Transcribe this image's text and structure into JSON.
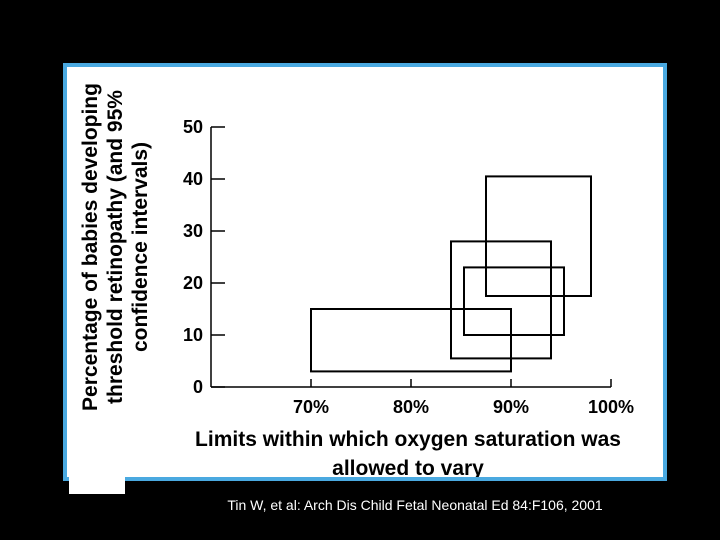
{
  "citation": "Tin W, et al: Arch Dis Child Fetal Neonatal Ed 84:F106, 2001",
  "colors": {
    "frame": "#4aa9e0",
    "background": "#000000",
    "panel": "#ffffff",
    "ink": "#000000"
  },
  "chart_data": {
    "type": "box-range",
    "title": "",
    "xlabel_lines": [
      "Limits within which oxygen saturation was",
      "allowed to vary"
    ],
    "ylabel_lines": [
      "Percentage of babies developing",
      "threshold retinopathy (and 95%",
      "confidence intervals)"
    ],
    "x_ticks": [
      70,
      80,
      90,
      100
    ],
    "x_tick_labels": [
      "70%",
      "80%",
      "90%",
      "100%"
    ],
    "y_ticks": [
      0,
      10,
      20,
      30,
      40,
      50
    ],
    "y_tick_labels": [
      "0",
      "10",
      "20",
      "30",
      "40",
      "50"
    ],
    "xlim": [
      60,
      100
    ],
    "ylim": [
      0,
      50
    ],
    "grid": false,
    "boxes": [
      {
        "x_min": 70,
        "x_max": 90,
        "y_min": 3,
        "y_max": 15
      },
      {
        "x_min": 84,
        "x_max": 94,
        "y_min": 5.5,
        "y_max": 28
      },
      {
        "x_min": 85.3,
        "x_max": 95.3,
        "y_min": 10,
        "y_max": 23
      },
      {
        "x_min": 87.5,
        "x_max": 98,
        "y_min": 17.5,
        "y_max": 40.5
      }
    ]
  }
}
